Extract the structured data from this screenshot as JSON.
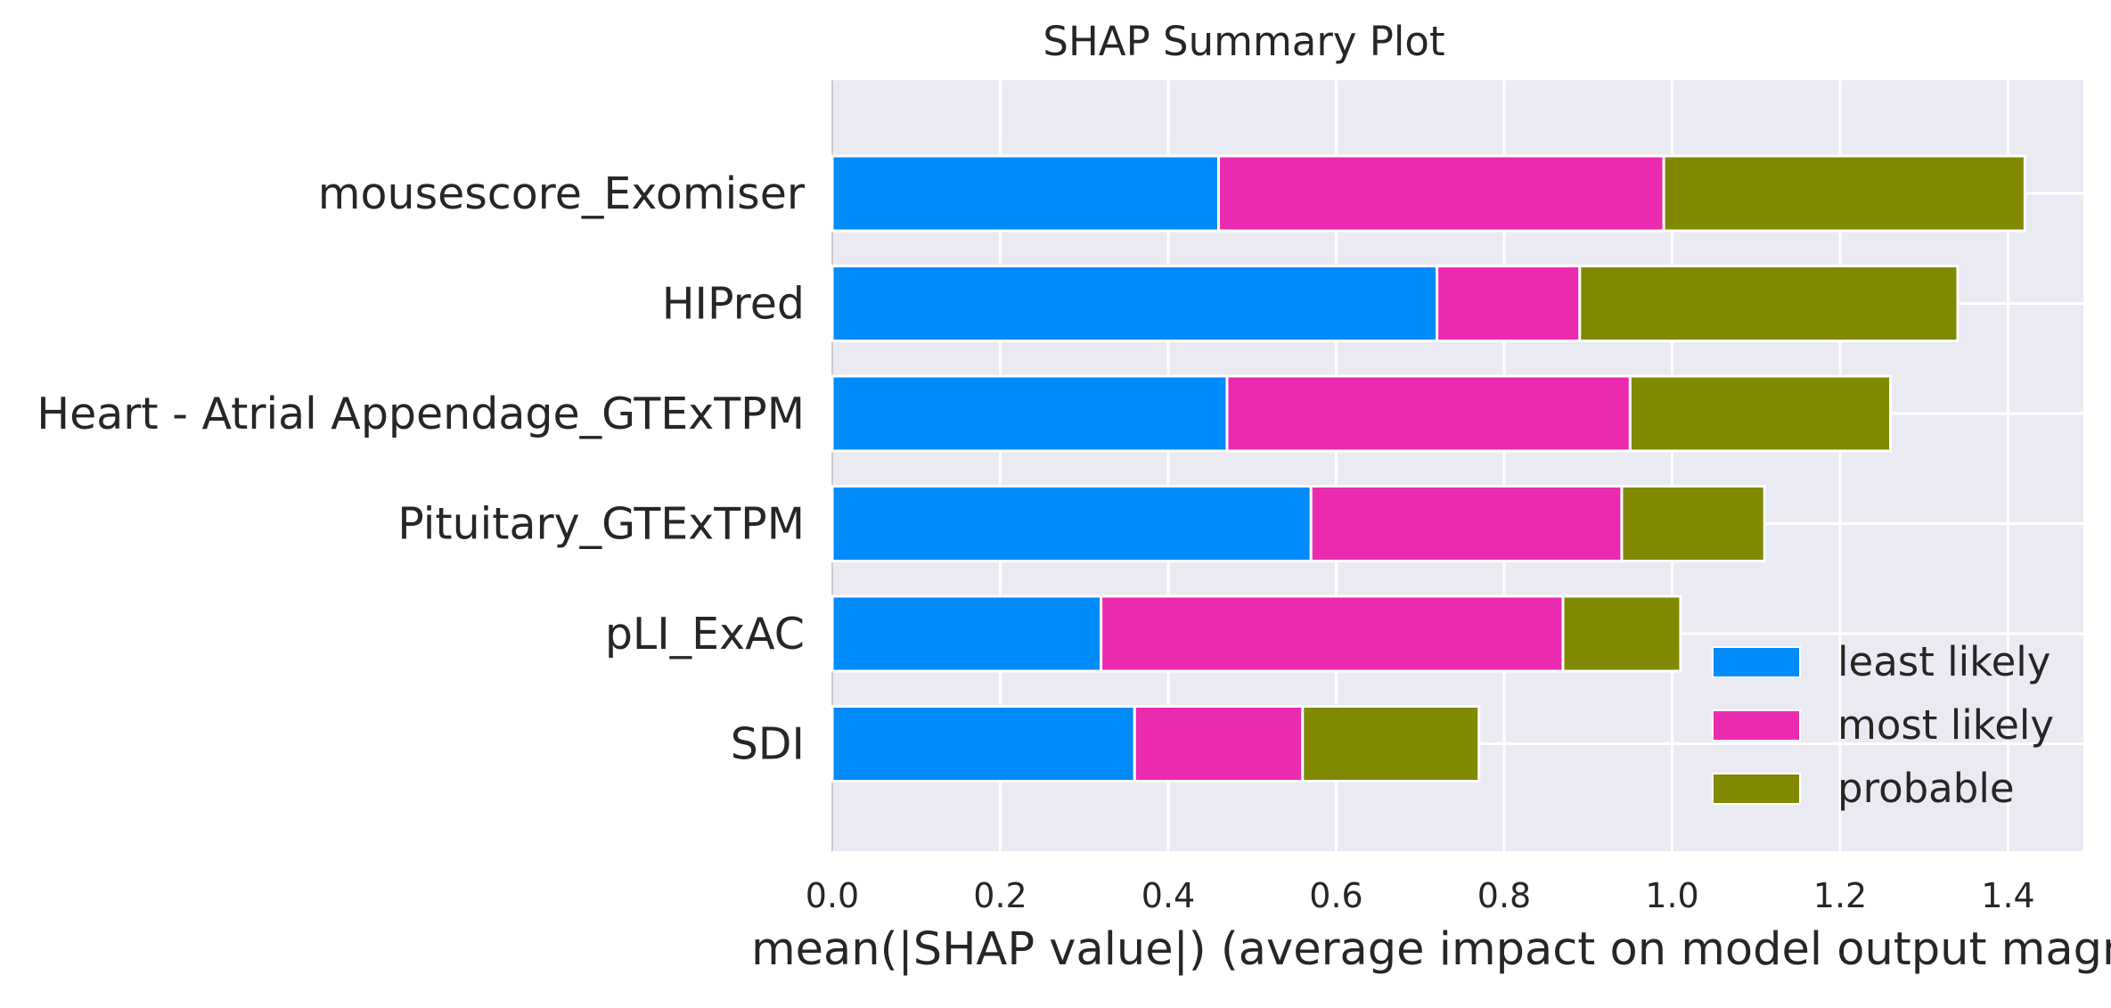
{
  "chart_data": {
    "type": "bar",
    "orientation": "horizontal",
    "stacked": true,
    "title": "SHAP Summary Plot",
    "xlabel": "mean(|SHAP value|) (average impact on model output magnitude)",
    "ylabel": "",
    "xlim": [
      0,
      1.45
    ],
    "xticks": [
      "0.0",
      "0.2",
      "0.4",
      "0.6",
      "0.8",
      "1.0",
      "1.2",
      "1.4"
    ],
    "grid": true,
    "legend_position": "lower-right",
    "categories": [
      "mousescore_Exomiser",
      "HIPred",
      "Heart - Atrial Appendage_GTExTPM",
      "Pituitary_GTExTPM",
      "pLI_ExAC",
      "SDI"
    ],
    "series": [
      {
        "name": "least likely",
        "color": "#008bfb",
        "values": [
          0.46,
          0.72,
          0.47,
          0.57,
          0.32,
          0.36
        ]
      },
      {
        "name": "most likely",
        "color": "#ea2aaf",
        "values": [
          0.53,
          0.17,
          0.48,
          0.37,
          0.55,
          0.2
        ]
      },
      {
        "name": "probable",
        "color": "#808900",
        "values": [
          0.43,
          0.45,
          0.31,
          0.17,
          0.14,
          0.21
        ]
      }
    ]
  }
}
